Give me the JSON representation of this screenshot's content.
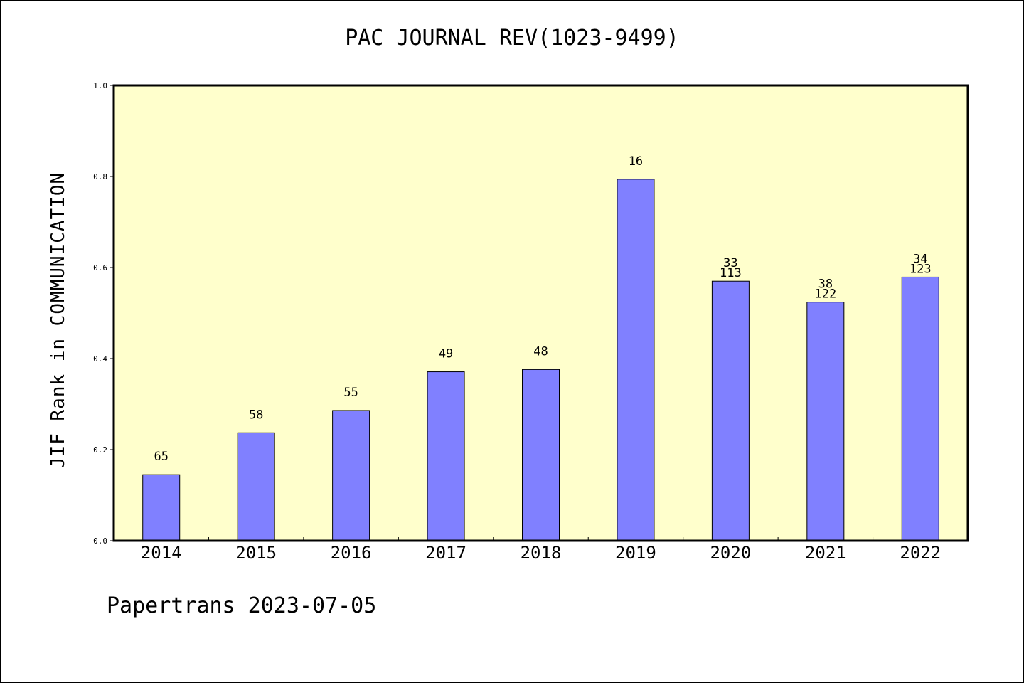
{
  "chart_data": {
    "type": "bar",
    "title": "PAC JOURNAL REV(1023-9499)",
    "ylabel": "JIF Rank in COMMUNICATION",
    "xlabel": "",
    "ylim": [
      0.0,
      1.0
    ],
    "yticks": [
      "0.0",
      "0.2",
      "0.4",
      "0.6",
      "0.8",
      "1.0"
    ],
    "categories": [
      "2014",
      "2015",
      "2016",
      "2017",
      "2018",
      "2019",
      "2020",
      "2021",
      "2022"
    ],
    "values": [
      0.145,
      0.237,
      0.286,
      0.371,
      0.376,
      0.794,
      0.57,
      0.524,
      0.579
    ],
    "labels": [
      [
        "65"
      ],
      [
        "58"
      ],
      [
        "55"
      ],
      [
        "49"
      ],
      [
        "48"
      ],
      [
        "16"
      ],
      [
        "33",
        "113"
      ],
      [
        "38",
        "122"
      ],
      [
        "34",
        "123"
      ]
    ],
    "grid": false,
    "legend": "none",
    "colors": {
      "bar": "#8080ff",
      "plot_background": "#ffffcc",
      "axis": "#000000"
    }
  },
  "footer": {
    "note": "Papertrans 2023-07-05"
  }
}
